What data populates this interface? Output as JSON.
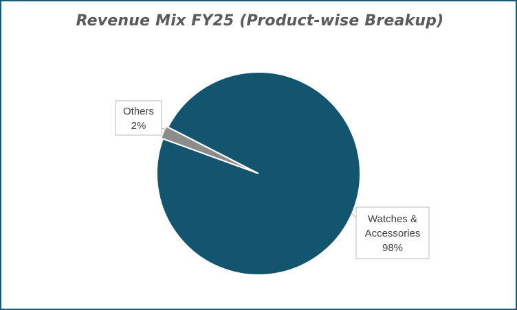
{
  "chart_data": {
    "type": "pie",
    "title": "Revenue Mix FY25 (Product-wise Breakup)",
    "slices": [
      {
        "label_lines": [
          "Watches &",
          "Accessories"
        ],
        "value": 98,
        "value_label": "98%",
        "color": "#13546f"
      },
      {
        "label_lines": [
          "Others"
        ],
        "value": 2,
        "value_label": "2%",
        "color": "#8c8c8c"
      }
    ],
    "legend": "none",
    "data_labels": "callout boxes with leader lines"
  }
}
